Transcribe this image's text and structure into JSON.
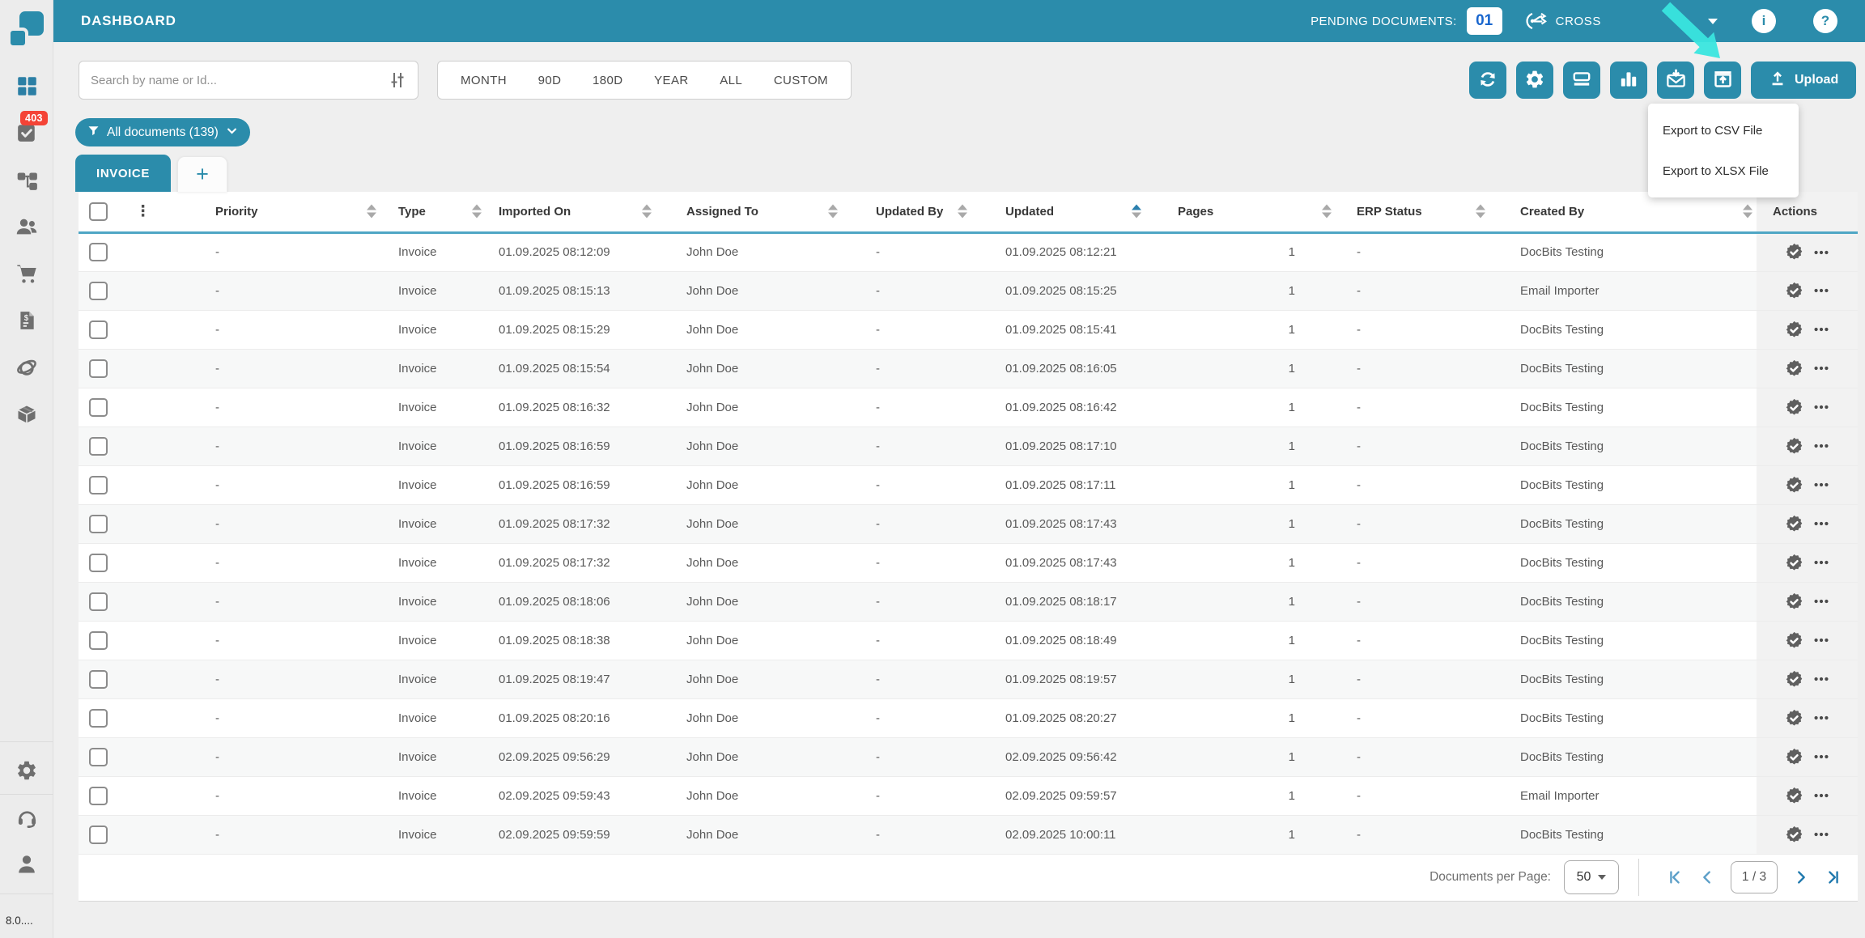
{
  "header": {
    "title": "DASHBOARD",
    "pending_label": "PENDING DOCUMENTS:",
    "pending_count": "01",
    "brand": "CROSS",
    "info_glyph": "i",
    "help_glyph": "?"
  },
  "sidebar": {
    "badge": "403",
    "version": "8.0....",
    "icons": [
      "dashboard-grid",
      "tasks",
      "workflow",
      "users",
      "cart",
      "invoices",
      "network",
      "packages",
      "settings",
      "support",
      "profile"
    ]
  },
  "filters": {
    "search_placeholder": "Search by name or Id...",
    "ranges": [
      "MONTH",
      "90D",
      "180D",
      "YEAR",
      "ALL",
      "CUSTOM"
    ],
    "documents_filter": "All documents (139)"
  },
  "tabs": {
    "active": "INVOICE",
    "add_label": "+"
  },
  "toolbar": {
    "icons": [
      "refresh",
      "settings",
      "scanner",
      "chart",
      "mail-download",
      "export"
    ],
    "upload_label": "Upload",
    "menu_items": [
      "Export to CSV File",
      "Export to XLSX File"
    ]
  },
  "table": {
    "columns": [
      {
        "key": "priority",
        "label": "Priority",
        "sortable": true,
        "sort": "none"
      },
      {
        "key": "type",
        "label": "Type",
        "sortable": true,
        "sort": "none"
      },
      {
        "key": "imported_on",
        "label": "Imported On",
        "sortable": true,
        "sort": "none"
      },
      {
        "key": "assigned_to",
        "label": "Assigned To",
        "sortable": true,
        "sort": "none"
      },
      {
        "key": "updated_by",
        "label": "Updated By",
        "sortable": true,
        "sort": "none"
      },
      {
        "key": "updated",
        "label": "Updated",
        "sortable": true,
        "sort": "asc"
      },
      {
        "key": "pages",
        "label": "Pages",
        "sortable": true,
        "sort": "none"
      },
      {
        "key": "erp_status",
        "label": "ERP Status",
        "sortable": true,
        "sort": "none"
      },
      {
        "key": "created_by",
        "label": "Created By",
        "sortable": true,
        "sort": "none"
      },
      {
        "key": "actions",
        "label": "Actions",
        "sortable": false,
        "sort": "none"
      }
    ],
    "rows": [
      {
        "priority": "-",
        "type": "Invoice",
        "imported_on": "01.09.2025 08:12:09",
        "assigned_to": "John Doe",
        "updated_by": "-",
        "updated": "01.09.2025 08:12:21",
        "pages": "1",
        "erp_status": "-",
        "created_by": "DocBits Testing"
      },
      {
        "priority": "-",
        "type": "Invoice",
        "imported_on": "01.09.2025 08:15:13",
        "assigned_to": "John Doe",
        "updated_by": "-",
        "updated": "01.09.2025 08:15:25",
        "pages": "1",
        "erp_status": "-",
        "created_by": "Email Importer"
      },
      {
        "priority": "-",
        "type": "Invoice",
        "imported_on": "01.09.2025 08:15:29",
        "assigned_to": "John Doe",
        "updated_by": "-",
        "updated": "01.09.2025 08:15:41",
        "pages": "1",
        "erp_status": "-",
        "created_by": "DocBits Testing"
      },
      {
        "priority": "-",
        "type": "Invoice",
        "imported_on": "01.09.2025 08:15:54",
        "assigned_to": "John Doe",
        "updated_by": "-",
        "updated": "01.09.2025 08:16:05",
        "pages": "1",
        "erp_status": "-",
        "created_by": "DocBits Testing"
      },
      {
        "priority": "-",
        "type": "Invoice",
        "imported_on": "01.09.2025 08:16:32",
        "assigned_to": "John Doe",
        "updated_by": "-",
        "updated": "01.09.2025 08:16:42",
        "pages": "1",
        "erp_status": "-",
        "created_by": "DocBits Testing"
      },
      {
        "priority": "-",
        "type": "Invoice",
        "imported_on": "01.09.2025 08:16:59",
        "assigned_to": "John Doe",
        "updated_by": "-",
        "updated": "01.09.2025 08:17:10",
        "pages": "1",
        "erp_status": "-",
        "created_by": "DocBits Testing"
      },
      {
        "priority": "-",
        "type": "Invoice",
        "imported_on": "01.09.2025 08:16:59",
        "assigned_to": "John Doe",
        "updated_by": "-",
        "updated": "01.09.2025 08:17:11",
        "pages": "1",
        "erp_status": "-",
        "created_by": "DocBits Testing"
      },
      {
        "priority": "-",
        "type": "Invoice",
        "imported_on": "01.09.2025 08:17:32",
        "assigned_to": "John Doe",
        "updated_by": "-",
        "updated": "01.09.2025 08:17:43",
        "pages": "1",
        "erp_status": "-",
        "created_by": "DocBits Testing"
      },
      {
        "priority": "-",
        "type": "Invoice",
        "imported_on": "01.09.2025 08:17:32",
        "assigned_to": "John Doe",
        "updated_by": "-",
        "updated": "01.09.2025 08:17:43",
        "pages": "1",
        "erp_status": "-",
        "created_by": "DocBits Testing"
      },
      {
        "priority": "-",
        "type": "Invoice",
        "imported_on": "01.09.2025 08:18:06",
        "assigned_to": "John Doe",
        "updated_by": "-",
        "updated": "01.09.2025 08:18:17",
        "pages": "1",
        "erp_status": "-",
        "created_by": "DocBits Testing"
      },
      {
        "priority": "-",
        "type": "Invoice",
        "imported_on": "01.09.2025 08:18:38",
        "assigned_to": "John Doe",
        "updated_by": "-",
        "updated": "01.09.2025 08:18:49",
        "pages": "1",
        "erp_status": "-",
        "created_by": "DocBits Testing"
      },
      {
        "priority": "-",
        "type": "Invoice",
        "imported_on": "01.09.2025 08:19:47",
        "assigned_to": "John Doe",
        "updated_by": "-",
        "updated": "01.09.2025 08:19:57",
        "pages": "1",
        "erp_status": "-",
        "created_by": "DocBits Testing"
      },
      {
        "priority": "-",
        "type": "Invoice",
        "imported_on": "01.09.2025 08:20:16",
        "assigned_to": "John Doe",
        "updated_by": "-",
        "updated": "01.09.2025 08:20:27",
        "pages": "1",
        "erp_status": "-",
        "created_by": "DocBits Testing"
      },
      {
        "priority": "-",
        "type": "Invoice",
        "imported_on": "02.09.2025 09:56:29",
        "assigned_to": "John Doe",
        "updated_by": "-",
        "updated": "02.09.2025 09:56:42",
        "pages": "1",
        "erp_status": "-",
        "created_by": "DocBits Testing"
      },
      {
        "priority": "-",
        "type": "Invoice",
        "imported_on": "02.09.2025 09:59:43",
        "assigned_to": "John Doe",
        "updated_by": "-",
        "updated": "02.09.2025 09:59:57",
        "pages": "1",
        "erp_status": "-",
        "created_by": "Email Importer"
      },
      {
        "priority": "-",
        "type": "Invoice",
        "imported_on": "02.09.2025 09:59:59",
        "assigned_to": "John Doe",
        "updated_by": "-",
        "updated": "02.09.2025 10:00:11",
        "pages": "1",
        "erp_status": "-",
        "created_by": "DocBits Testing"
      }
    ]
  },
  "pagination": {
    "per_page_label": "Documents per Page:",
    "per_page": "50",
    "page_indicator": "1 / 3"
  },
  "colors": {
    "accent": "#2B8CAB",
    "header_underline": "#4FA6C5",
    "badge_red": "#F44336",
    "pending_blue": "#1966CE",
    "annotation_cyan": "#39E5DE",
    "pager_active": "#1E78AD",
    "pager_muted": "#5C9FC8"
  }
}
